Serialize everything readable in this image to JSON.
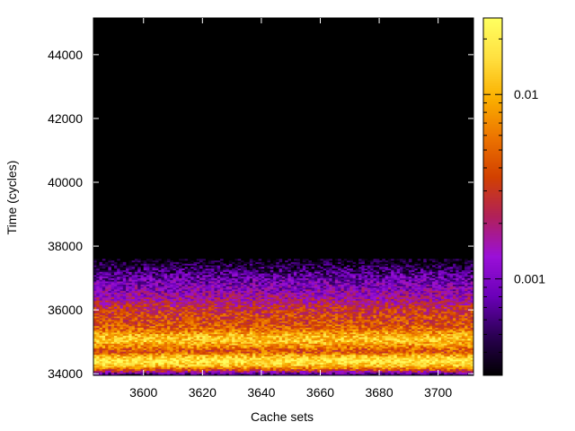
{
  "chart_data": {
    "type": "heatmap",
    "xlabel": "Cache sets",
    "ylabel": "Time (cycles)",
    "xlim": [
      3583,
      3712
    ],
    "ylim": [
      33950,
      45150
    ],
    "x_ticks": [
      3600,
      3620,
      3640,
      3660,
      3680,
      3700
    ],
    "x_tick_labels": [
      "3600",
      "3620",
      "3640",
      "3660",
      "3680",
      "3700"
    ],
    "y_ticks": [
      34000,
      36000,
      38000,
      40000,
      42000,
      44000
    ],
    "y_tick_labels": [
      "34000",
      "36000",
      "38000",
      "40000",
      "42000",
      "44000"
    ],
    "colorbar": {
      "scale": "log",
      "range": [
        0.0003,
        0.026
      ],
      "ticks": [
        0.001,
        0.01
      ],
      "tick_labels": [
        "0.001",
        "0.01"
      ],
      "palette": [
        "#000000",
        "#2a0052",
        "#6b00b8",
        "#9a10d8",
        "#b0205a",
        "#d24000",
        "#ec7400",
        "#fbb000",
        "#ffe040",
        "#ffff60"
      ]
    },
    "background_value": 0.0003,
    "density_profile": [
      {
        "time": 34000,
        "value": 0.0006
      },
      {
        "time": 34100,
        "value": 0.003
      },
      {
        "time": 34250,
        "value": 0.012
      },
      {
        "time": 34400,
        "value": 0.02
      },
      {
        "time": 34550,
        "value": 0.012
      },
      {
        "time": 34700,
        "value": 0.004
      },
      {
        "time": 34900,
        "value": 0.008
      },
      {
        "time": 35050,
        "value": 0.013
      },
      {
        "time": 35200,
        "value": 0.011
      },
      {
        "time": 35400,
        "value": 0.005
      },
      {
        "time": 35600,
        "value": 0.004
      },
      {
        "time": 35800,
        "value": 0.0035
      },
      {
        "time": 36000,
        "value": 0.003
      },
      {
        "time": 36300,
        "value": 0.0018
      },
      {
        "time": 36600,
        "value": 0.0012
      },
      {
        "time": 36900,
        "value": 0.0009
      },
      {
        "time": 37200,
        "value": 0.0006
      },
      {
        "time": 37500,
        "value": 0.00035
      },
      {
        "time": 37600,
        "value": 0.0003
      },
      {
        "time": 45150,
        "value": 0.0003
      }
    ],
    "grid": false
  }
}
